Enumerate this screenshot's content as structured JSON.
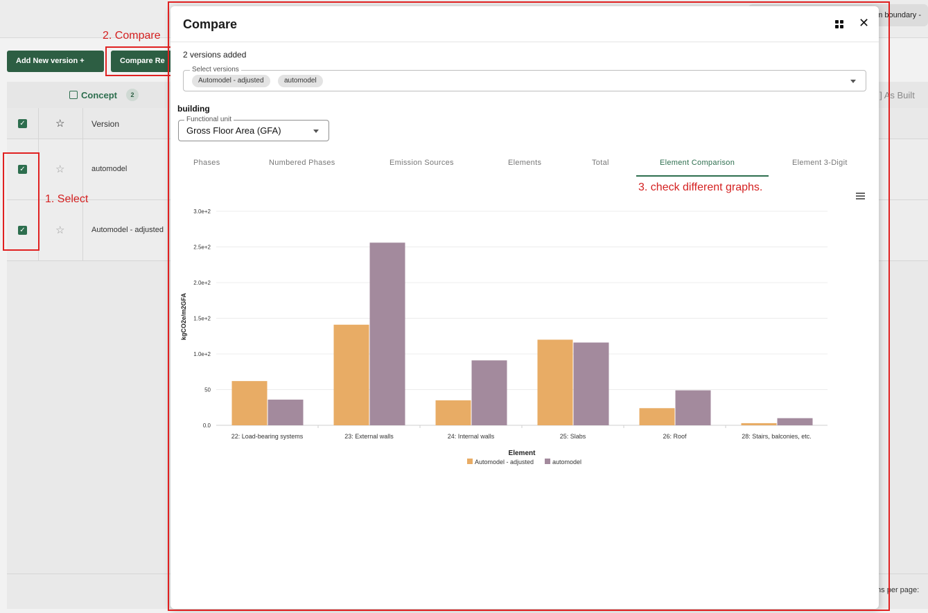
{
  "background": {
    "top_chip_text": "m boundary -",
    "buttons": {
      "add_new_version": "Add New version +",
      "compare": "Compare Re"
    },
    "tabs": {
      "concept_label": "Concept",
      "concept_count": "2",
      "as_built_label": "[ ] As Built"
    },
    "table": {
      "columns": {
        "star": "☆",
        "version": "Version"
      },
      "rows": [
        {
          "version": "automodel"
        },
        {
          "version": "Automodel - adjusted"
        }
      ]
    },
    "footer": {
      "items_per_page": "ms per page:"
    }
  },
  "annotations": {
    "step1": "1. Select",
    "step2": "2. Compare",
    "step3": "3. check different graphs."
  },
  "modal": {
    "title": "Compare",
    "versions_added": "2 versions added",
    "select": {
      "label": "Select versions",
      "chips": [
        "Automodel - adjusted",
        "automodel"
      ]
    },
    "section": "building",
    "functional_unit": {
      "label": "Functional unit",
      "value": "Gross Floor Area (GFA)"
    },
    "tabs": [
      {
        "label": "Phases",
        "active": false
      },
      {
        "label": "Numbered Phases",
        "active": false
      },
      {
        "label": "Emission Sources",
        "active": false
      },
      {
        "label": "Elements",
        "active": false
      },
      {
        "label": "Total",
        "active": false
      },
      {
        "label": "Element Comparison",
        "active": true
      },
      {
        "label": "Element 3-Digit",
        "active": false
      }
    ]
  },
  "chart_data": {
    "type": "bar",
    "title": "",
    "xlabel": "Element",
    "ylabel": "kgCO2e/m2GFA",
    "ylim": [
      0,
      300
    ],
    "yticks": [
      0,
      50,
      100,
      150,
      200,
      250,
      300
    ],
    "ytick_labels": [
      "0.0",
      "50",
      "1.0e+2",
      "1.5e+2",
      "2.0e+2",
      "2.5e+2",
      "3.0e+2"
    ],
    "categories": [
      "22: Load-bearing systems",
      "23: External walls",
      "24: Internal walls",
      "25: Slabs",
      "26: Roof",
      "28: Stairs, balconies, etc."
    ],
    "series": [
      {
        "name": "Automodel - adjusted",
        "color": "#e8ac65",
        "values": [
          62,
          141,
          35,
          120,
          24,
          3
        ]
      },
      {
        "name": "automodel",
        "color": "#a38a9d",
        "values": [
          36,
          256,
          91,
          116,
          49,
          10
        ]
      }
    ],
    "legend": "bottom-center",
    "grid": true
  }
}
